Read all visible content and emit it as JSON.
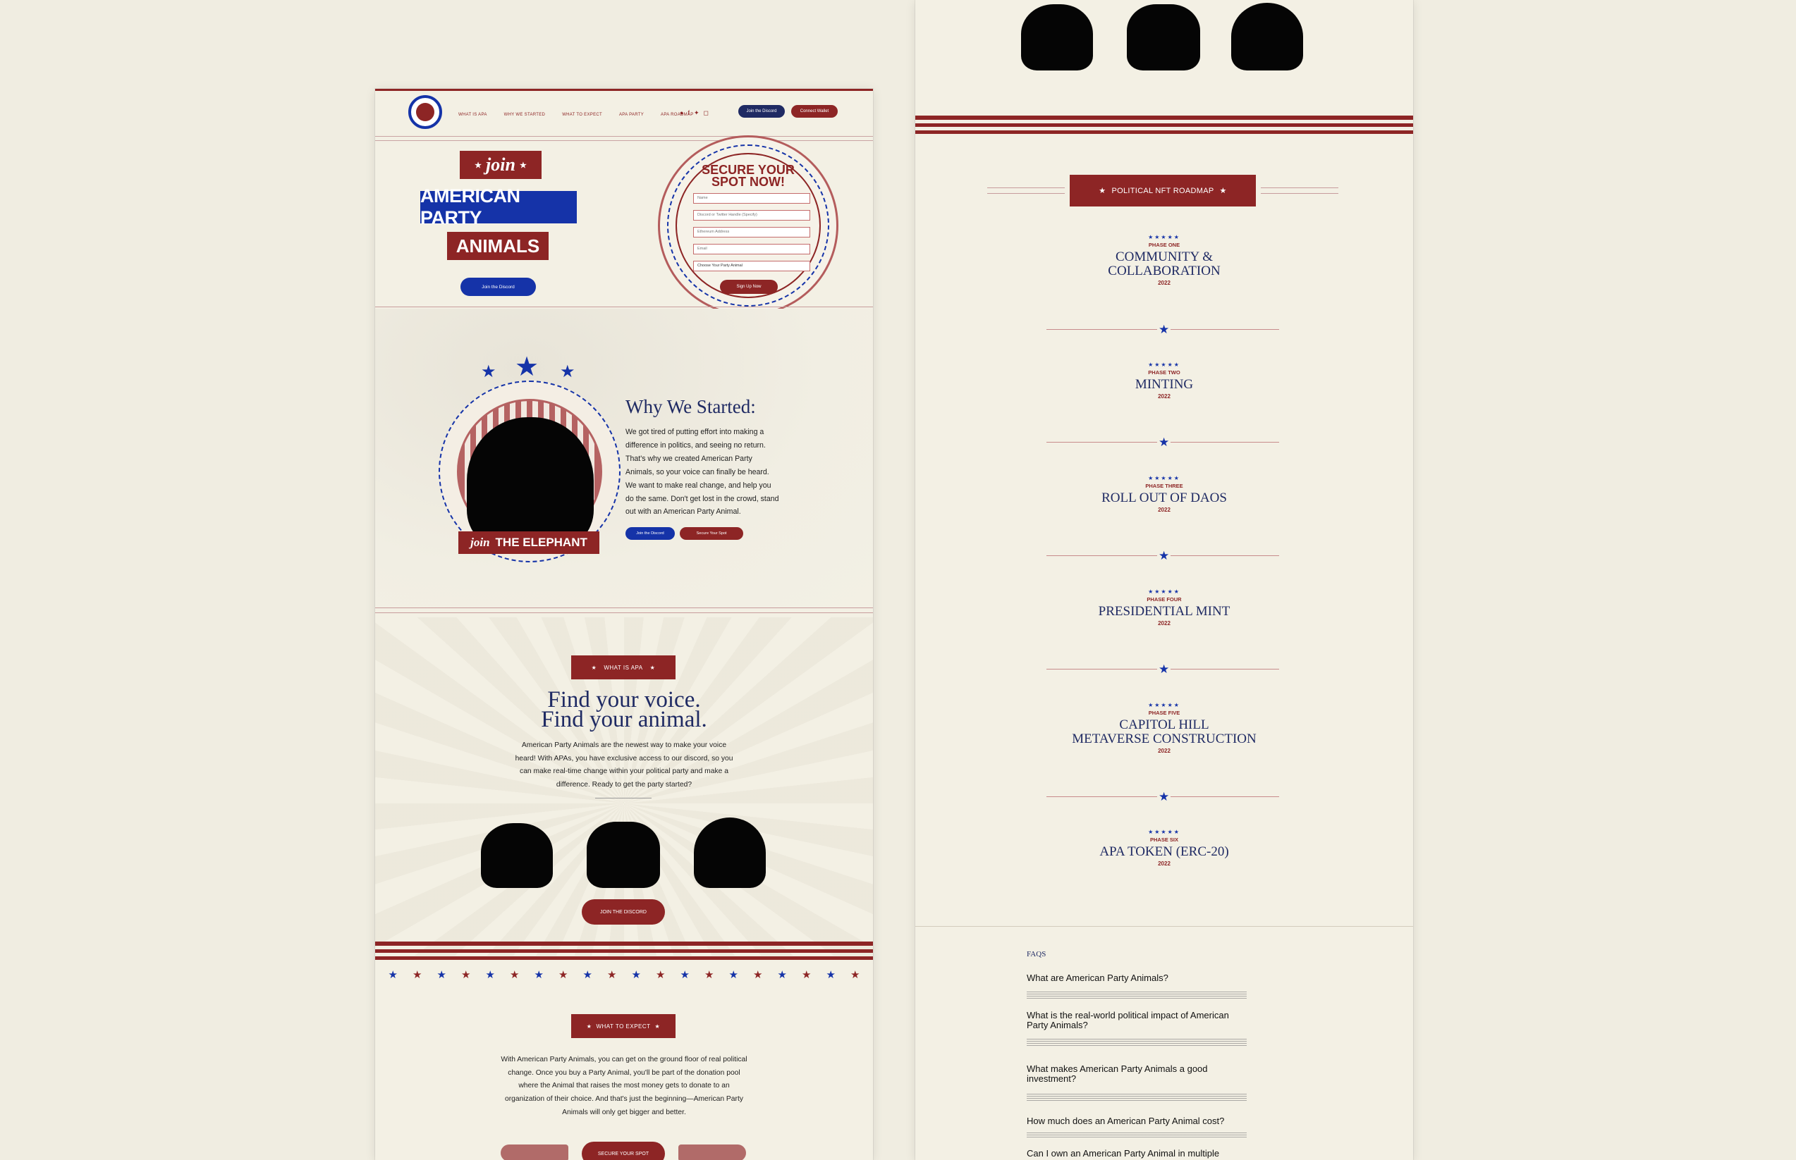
{
  "nav": {
    "links": [
      "WHAT IS APA",
      "WHY WE STARTED",
      "WHAT TO EXPECT",
      "APA PARTY",
      "APA ROADMAP"
    ],
    "join_discord": "Join the Discord",
    "connect_wallet": "Connect Wallet"
  },
  "hero": {
    "join": "join",
    "title_line1": "AMERICAN PARTY",
    "title_line2": "ANIMALS",
    "discord_button": "Join the Discord"
  },
  "signup": {
    "title_line1": "SECURE YOUR",
    "title_line2": "SPOT NOW!",
    "fields": [
      "Name",
      "Discord or Twitter Handle (Specify)",
      "Ethereum Address",
      "Email",
      "Choose Your Party Animal"
    ],
    "submit": "Sign Up Now"
  },
  "why": {
    "badge_label_join": "join",
    "badge_label": "THE ELEPHANT",
    "title": "Why We Started:",
    "body": "We got tired of putting effort into making a difference in politics, and seeing no return. That's why we created American Party Animals, so your voice can finally be heard. We want to make real change, and help you do the same. Don't get lost in the crowd, stand out with an American Party Animal.",
    "btn_discord": "Join the Discord",
    "btn_spot": "Secure Your Spot"
  },
  "what_is": {
    "tag": "WHAT IS APA",
    "title_line1": "Find your voice.",
    "title_line2": "Find your animal.",
    "body": "American Party Animals are the newest way to make your voice heard! With APAs, you have exclusive access to our discord, so you can make real-time change within your political party and make a difference. Ready to get the party started?",
    "button": "JOIN THE DISCORD"
  },
  "expect": {
    "tag": "WHAT TO EXPECT",
    "body": "With American Party Animals, you can get on the ground floor of real political change. Once you buy a Party Animal, you'll be part of the donation pool where the Animal that raises the most money gets to donate to an organization of their choice. And that's just the beginning—American Party Animals will only get bigger and better.",
    "button": "SECURE YOUR SPOT"
  },
  "roadmap": {
    "tag": "POLITICAL NFT ROADMAP",
    "phases": [
      {
        "label": "PHASE ONE",
        "title": "COMMUNITY &",
        "title2": "COLLABORATION",
        "year": "2022"
      },
      {
        "label": "PHASE TWO",
        "title": "MINTING",
        "title2": "",
        "year": "2022"
      },
      {
        "label": "PHASE THREE",
        "title": "ROLL OUT OF DAOS",
        "title2": "",
        "year": "2022"
      },
      {
        "label": "PHASE FOUR",
        "title": "PRESIDENTIAL MINT",
        "title2": "",
        "year": "2022"
      },
      {
        "label": "PHASE FIVE",
        "title": "CAPITOL HILL",
        "title2": "METAVERSE CONSTRUCTION",
        "year": "2022"
      },
      {
        "label": "PHASE SIX",
        "title": "APA TOKEN (ERC-20)",
        "title2": "",
        "year": "2022"
      }
    ]
  },
  "faq": {
    "label": "FAQS",
    "questions": [
      "What are American Party Animals?",
      "What is the real-world political impact of American Party Animals?",
      "What makes American Party Animals a good investment?",
      "How much does an American Party Animal cost?",
      "Can I own an American Party Animal in multiple"
    ]
  },
  "colors": {
    "red": "#8d2525",
    "navy": "#1f2a63",
    "blue": "#1533a8",
    "background": "#f0ede1"
  }
}
